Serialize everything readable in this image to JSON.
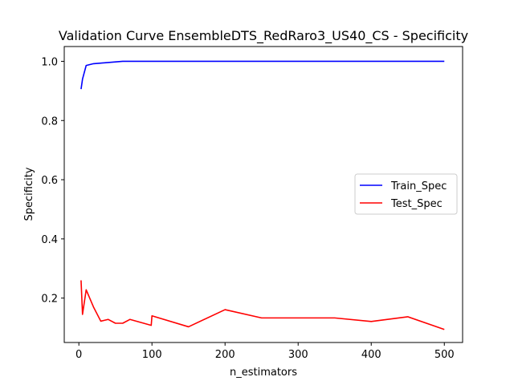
{
  "chart_data": {
    "type": "line",
    "title": "Validation Curve EnsembleDTS_RedRaro3_US40_CS - Specificity",
    "xlabel": "n_estimators",
    "ylabel": "Specificity",
    "xlim": [
      -20,
      525
    ],
    "ylim": [
      0.05,
      1.05
    ],
    "xticks": [
      0,
      100,
      200,
      300,
      400,
      500
    ],
    "yticks": [
      0.2,
      0.4,
      0.6,
      0.8,
      1.0
    ],
    "xtick_labels": [
      "0",
      "100",
      "200",
      "300",
      "400",
      "500"
    ],
    "ytick_labels": [
      "0.2",
      "0.4",
      "0.6",
      "0.8",
      "1.0"
    ],
    "grid": false,
    "legend_position": "center-right",
    "series": [
      {
        "name": "Train_Spec",
        "color": "#0000ff",
        "x": [
          3,
          5,
          10,
          20,
          30,
          40,
          50,
          60,
          70,
          100,
          150,
          200,
          250,
          300,
          350,
          400,
          450,
          500
        ],
        "y": [
          0.906,
          0.94,
          0.986,
          0.992,
          0.994,
          0.996,
          0.998,
          1.0,
          1.0,
          1.0,
          1.0,
          1.0,
          1.0,
          1.0,
          1.0,
          1.0,
          1.0,
          1.0
        ]
      },
      {
        "name": "Test_Spec",
        "color": "#ff0000",
        "x": [
          3,
          5,
          10,
          20,
          30,
          40,
          50,
          60,
          70,
          99,
          100,
          150,
          200,
          250,
          300,
          350,
          400,
          450,
          500
        ],
        "y": [
          0.26,
          0.145,
          0.228,
          0.17,
          0.122,
          0.128,
          0.115,
          0.115,
          0.128,
          0.108,
          0.14,
          0.103,
          0.161,
          0.133,
          0.133,
          0.133,
          0.121,
          0.137,
          0.094
        ]
      }
    ]
  }
}
